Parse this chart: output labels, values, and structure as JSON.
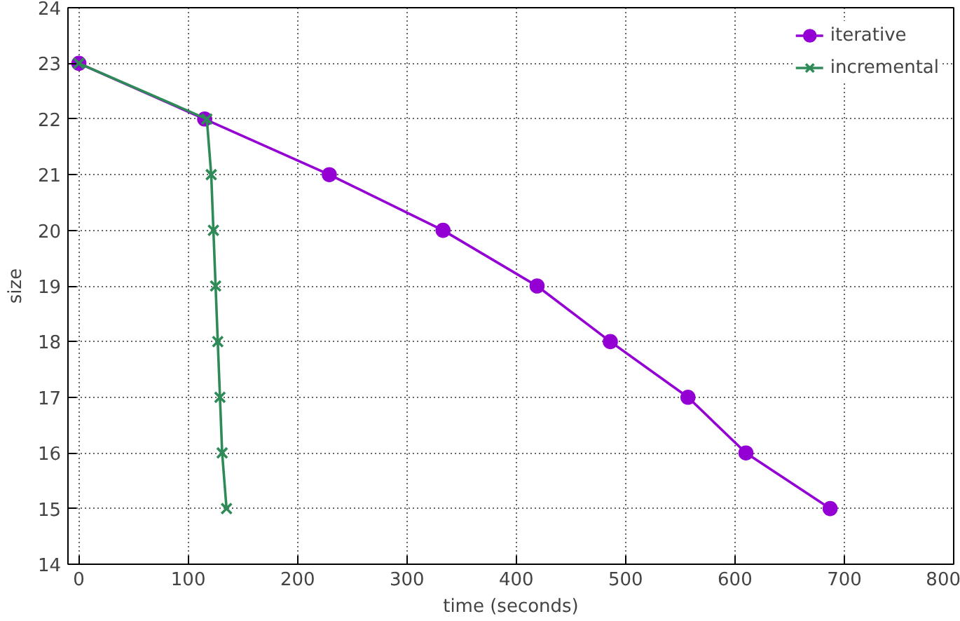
{
  "chart_data": {
    "type": "line",
    "xlabel": "time (seconds)",
    "ylabel": "size",
    "xlim": [
      -10,
      800
    ],
    "ylim": [
      14,
      24
    ],
    "xticks": [
      0,
      100,
      200,
      300,
      400,
      500,
      600,
      700,
      800
    ],
    "yticks": [
      14,
      15,
      16,
      17,
      18,
      19,
      20,
      21,
      22,
      23,
      24
    ],
    "grid": true,
    "legend": "top right",
    "line_style": "solid",
    "series": [
      {
        "name": "iterative",
        "color": "#9400d3",
        "marker": "circle",
        "x": [
          0,
          115,
          229,
          333,
          419,
          486,
          557,
          610,
          687
        ],
        "values": [
          23,
          22,
          21,
          20,
          19,
          18,
          17,
          16,
          15
        ]
      },
      {
        "name": "incremental",
        "color": "#2e8b57",
        "marker": "cross",
        "x": [
          0,
          117,
          121,
          123,
          125,
          127,
          129,
          131,
          135
        ],
        "values": [
          23,
          22,
          21,
          20,
          19,
          18,
          17,
          16,
          15
        ]
      }
    ]
  }
}
